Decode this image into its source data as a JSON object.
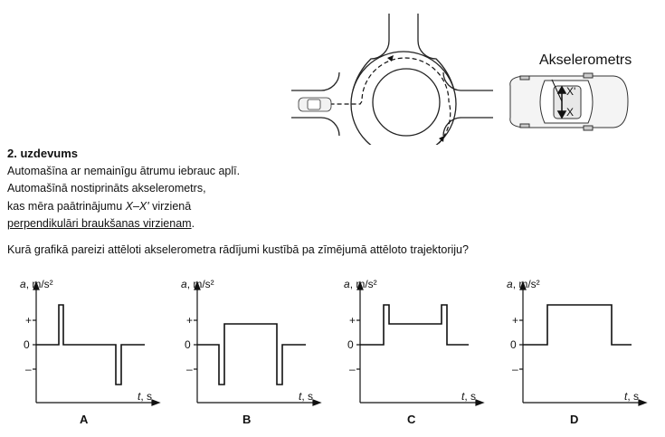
{
  "task": {
    "title": "2. uzdevums",
    "line1": "Automašīna ar nemainīgu ātrumu iebrauc aplī.",
    "line2": "Automašīnā nostiprināts akselerometrs,",
    "line3_pre": "kas mēra paātrinājumu ",
    "line3_em": "X–X'",
    "line3_post": " virzienā",
    "line4": "perpendikulāri braukšanas virzienam",
    "line4_end": "."
  },
  "question": "Kurā grafikā pareizi attēloti akselerometra rādījumi kustībā pa zīmējumā attēloto trajektoriju?",
  "figure": {
    "sensor_label": "Akselerometrs",
    "axis_x_prime": "X'",
    "axis_x": "X"
  },
  "graphs": [
    {
      "letter": "A",
      "y_label_var": "a",
      "y_label_unit": ", m/s²",
      "x_label_var": "t",
      "x_label_unit": ", s",
      "tick_plus": "+",
      "tick_zero": "0",
      "tick_minus": "–"
    },
    {
      "letter": "B",
      "y_label_var": "a",
      "y_label_unit": ", m/s²",
      "x_label_var": "t",
      "x_label_unit": ", s",
      "tick_plus": "+",
      "tick_zero": "0",
      "tick_minus": "–"
    },
    {
      "letter": "C",
      "y_label_var": "a",
      "y_label_unit": ", m/s²",
      "x_label_var": "t",
      "x_label_unit": ", s",
      "tick_plus": "+",
      "tick_zero": "0",
      "tick_minus": "–"
    },
    {
      "letter": "D",
      "y_label_var": "a",
      "y_label_unit": ", m/s²",
      "x_label_var": "t",
      "x_label_unit": ", s",
      "tick_plus": "+",
      "tick_zero": "0",
      "tick_minus": "–"
    }
  ]
}
